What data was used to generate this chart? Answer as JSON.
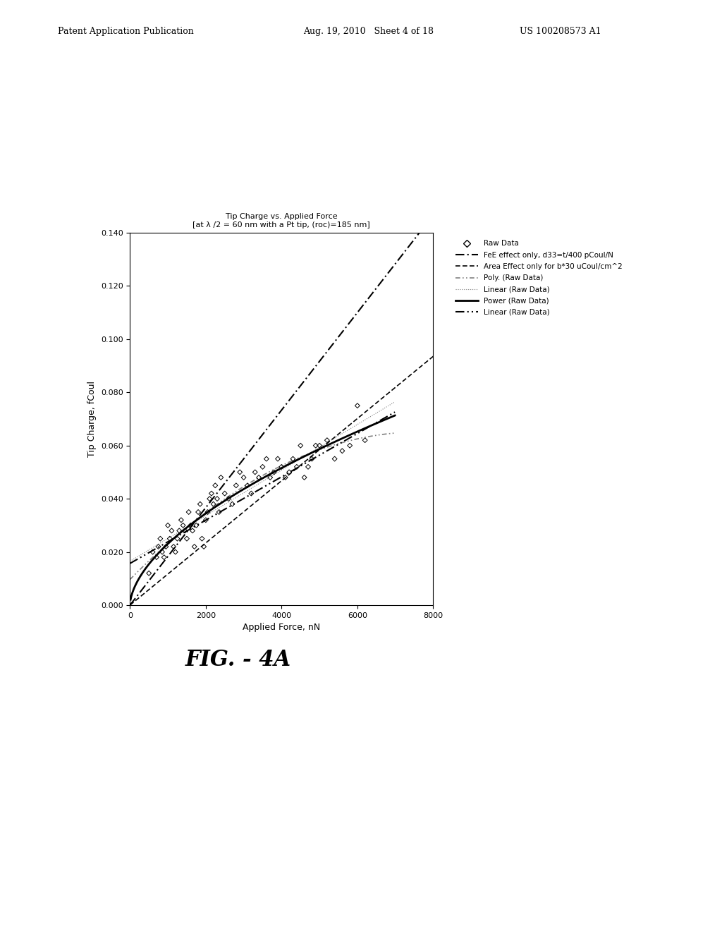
{
  "title_line1": "Tip Charge vs. Applied Force",
  "title_line2": "[at λ /2 = 60 nm with a Pt tip, (roc)=185 nm]",
  "xlabel": "Applied Force, nN",
  "ylabel": "Tip Charge, fCoul",
  "xlim": [
    0,
    8000
  ],
  "ylim": [
    0.0,
    0.14
  ],
  "yticks": [
    0.0,
    0.02,
    0.04,
    0.06,
    0.08,
    0.1,
    0.12,
    0.14
  ],
  "xticks": [
    0,
    2000,
    4000,
    6000,
    8000
  ],
  "background_color": "#ffffff",
  "raw_data_x": [
    500,
    600,
    700,
    750,
    800,
    850,
    900,
    950,
    1000,
    1050,
    1100,
    1150,
    1200,
    1250,
    1300,
    1350,
    1400,
    1450,
    1500,
    1550,
    1600,
    1650,
    1700,
    1750,
    1800,
    1850,
    1900,
    1950,
    2000,
    2050,
    2100,
    2150,
    2200,
    2250,
    2300,
    2350,
    2400,
    2500,
    2600,
    2700,
    2800,
    2900,
    3000,
    3100,
    3200,
    3300,
    3400,
    3500,
    3600,
    3700,
    3800,
    3900,
    4000,
    4100,
    4200,
    4300,
    4400,
    4500,
    4600,
    4700,
    4800,
    4900,
    5000,
    5200,
    5400,
    5600,
    5800,
    6000,
    6200
  ],
  "raw_data_y": [
    0.012,
    0.02,
    0.018,
    0.022,
    0.025,
    0.02,
    0.018,
    0.022,
    0.03,
    0.025,
    0.028,
    0.022,
    0.02,
    0.025,
    0.028,
    0.032,
    0.03,
    0.028,
    0.025,
    0.035,
    0.03,
    0.028,
    0.022,
    0.03,
    0.035,
    0.038,
    0.025,
    0.022,
    0.032,
    0.035,
    0.04,
    0.042,
    0.038,
    0.045,
    0.04,
    0.035,
    0.048,
    0.042,
    0.04,
    0.038,
    0.045,
    0.05,
    0.048,
    0.045,
    0.042,
    0.05,
    0.048,
    0.052,
    0.055,
    0.048,
    0.05,
    0.055,
    0.052,
    0.048,
    0.05,
    0.055,
    0.052,
    0.06,
    0.048,
    0.052,
    0.055,
    0.06,
    0.06,
    0.062,
    0.055,
    0.058,
    0.06,
    0.075,
    0.062
  ],
  "legend_labels": [
    "Raw Data",
    "FeE effect only, d33=t/400 pCoul/N",
    "Area Effect only for b*30 uCoul/cm^2",
    "Poly. (Raw Data)",
    "Linear (Raw Data)",
    "Power (Raw Data)",
    "Linear (Raw Data)"
  ],
  "fig_label": "FIG. - 4A",
  "patent_header_left": "Patent Application Publication",
  "patent_header_mid": "Aug. 19, 2010  Sheet 4 of 18",
  "patent_header_right": "US 100208573 A1"
}
